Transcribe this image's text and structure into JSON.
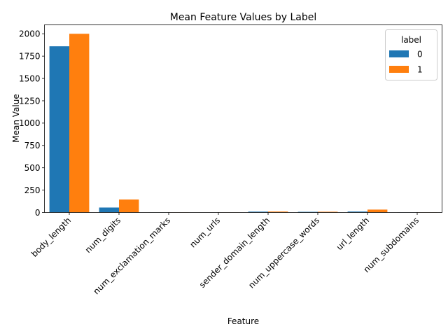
{
  "chart_data": {
    "type": "bar",
    "title": "Mean Feature Values by Label",
    "xlabel": "Feature",
    "ylabel": "Mean Value",
    "ylim": [
      0,
      2100
    ],
    "yticks": [
      0,
      250,
      500,
      750,
      1000,
      1250,
      1500,
      1750,
      2000
    ],
    "categories": [
      "body_length",
      "num_digits",
      "num_exclamation_marks",
      "num_urls",
      "sender_domain_length",
      "num_uppercase_words",
      "url_length",
      "num_subdomains"
    ],
    "series": [
      {
        "name": "0",
        "color": "#1f77b4",
        "values": [
          1860,
          55,
          0.5,
          0.3,
          9,
          7,
          10,
          0.8
        ]
      },
      {
        "name": "1",
        "color": "#ff7f0e",
        "values": [
          2000,
          145,
          1,
          0.7,
          10,
          8,
          32,
          1.2
        ]
      }
    ],
    "legend": {
      "title": "label",
      "position": "top-right"
    }
  }
}
